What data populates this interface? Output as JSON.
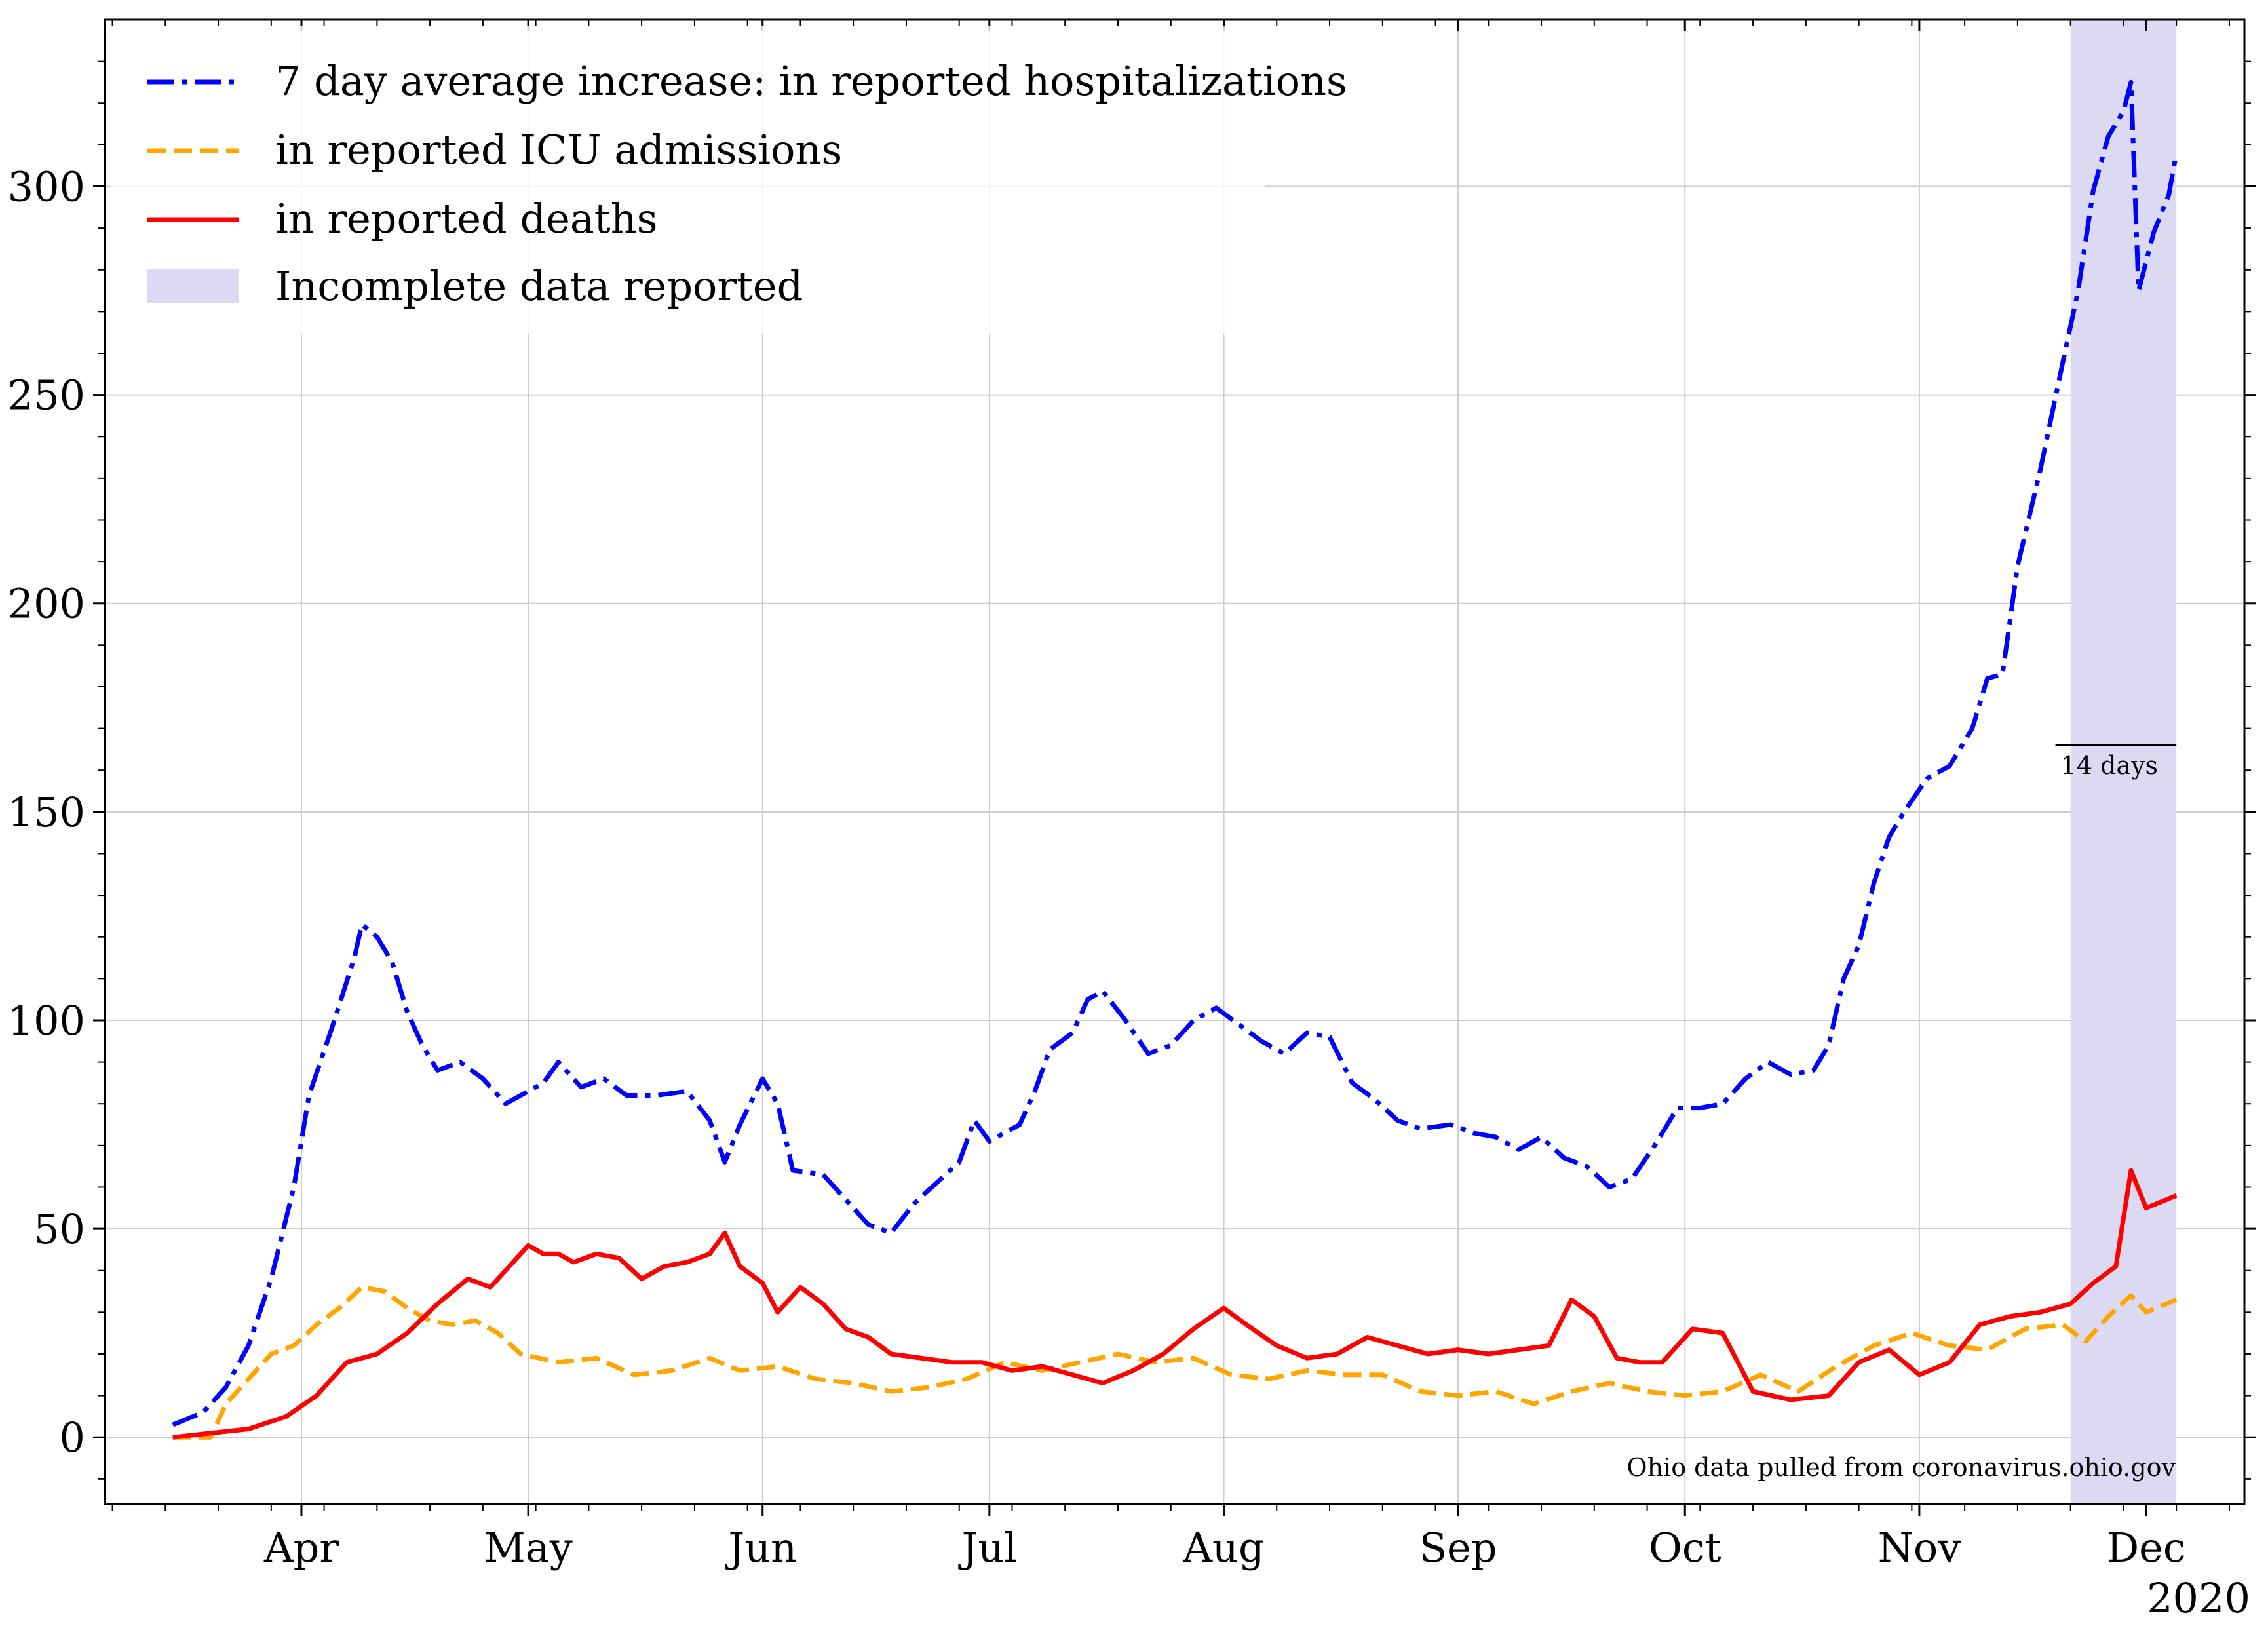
{
  "chart_data": {
    "type": "line",
    "title": "",
    "xlabel": "",
    "ylabel": "",
    "x_start_date": "2020-03-15",
    "x_range": [
      "2020-03-06",
      "2020-12-14"
    ],
    "ylim": [
      -16,
      340
    ],
    "grid": true,
    "legend_placement": "top-left",
    "x_tick_labels": [
      "Apr",
      "May",
      "Jun",
      "Jul",
      "Aug",
      "Sep",
      "Oct",
      "Nov",
      "Dec"
    ],
    "x_tick_dates": [
      "2020-04-01",
      "2020-05-01",
      "2020-06-01",
      "2020-07-01",
      "2020-08-01",
      "2020-09-01",
      "2020-10-01",
      "2020-11-01",
      "2020-12-01"
    ],
    "x_year_label": "2020",
    "y_ticks": [
      0,
      50,
      100,
      150,
      200,
      250,
      300
    ],
    "y_tick_labels": [
      "0",
      "50",
      "100",
      "150",
      "200",
      "250",
      "300"
    ],
    "series": [
      {
        "name": "7 day average increase: in reported hospitalizations",
        "color": "#0000ff",
        "style": "dashdot",
        "points": [
          [
            "2020-03-15",
            3
          ],
          [
            "2020-03-19",
            6
          ],
          [
            "2020-03-22",
            12
          ],
          [
            "2020-03-25",
            22
          ],
          [
            "2020-03-28",
            38
          ],
          [
            "2020-03-31",
            60
          ],
          [
            "2020-04-02",
            82
          ],
          [
            "2020-04-05",
            98
          ],
          [
            "2020-04-08",
            115
          ],
          [
            "2020-04-09",
            123
          ],
          [
            "2020-04-11",
            120
          ],
          [
            "2020-04-13",
            114
          ],
          [
            "2020-04-15",
            102
          ],
          [
            "2020-04-17",
            94
          ],
          [
            "2020-04-19",
            88
          ],
          [
            "2020-04-22",
            90
          ],
          [
            "2020-04-25",
            86
          ],
          [
            "2020-04-28",
            80
          ],
          [
            "2020-05-01",
            83
          ],
          [
            "2020-05-03",
            85
          ],
          [
            "2020-05-05",
            90
          ],
          [
            "2020-05-08",
            84
          ],
          [
            "2020-05-11",
            86
          ],
          [
            "2020-05-14",
            82
          ],
          [
            "2020-05-18",
            82
          ],
          [
            "2020-05-22",
            83
          ],
          [
            "2020-05-25",
            76
          ],
          [
            "2020-05-27",
            66
          ],
          [
            "2020-05-29",
            75
          ],
          [
            "2020-06-01",
            86
          ],
          [
            "2020-06-03",
            80
          ],
          [
            "2020-06-05",
            64
          ],
          [
            "2020-06-09",
            63
          ],
          [
            "2020-06-12",
            57
          ],
          [
            "2020-06-15",
            51
          ],
          [
            "2020-06-18",
            49
          ],
          [
            "2020-06-21",
            56
          ],
          [
            "2020-06-24",
            61
          ],
          [
            "2020-06-27",
            66
          ],
          [
            "2020-06-29",
            76
          ],
          [
            "2020-07-01",
            71
          ],
          [
            "2020-07-05",
            75
          ],
          [
            "2020-07-07",
            83
          ],
          [
            "2020-07-09",
            93
          ],
          [
            "2020-07-12",
            97
          ],
          [
            "2020-07-14",
            105
          ],
          [
            "2020-07-16",
            107
          ],
          [
            "2020-07-19",
            100
          ],
          [
            "2020-07-22",
            92
          ],
          [
            "2020-07-25",
            94
          ],
          [
            "2020-07-28",
            100
          ],
          [
            "2020-07-31",
            103
          ],
          [
            "2020-08-03",
            99
          ],
          [
            "2020-08-06",
            95
          ],
          [
            "2020-08-09",
            92
          ],
          [
            "2020-08-12",
            97
          ],
          [
            "2020-08-15",
            96
          ],
          [
            "2020-08-18",
            85
          ],
          [
            "2020-08-21",
            81
          ],
          [
            "2020-08-24",
            76
          ],
          [
            "2020-08-27",
            74
          ],
          [
            "2020-08-31",
            75
          ],
          [
            "2020-09-03",
            73
          ],
          [
            "2020-09-06",
            72
          ],
          [
            "2020-09-09",
            69
          ],
          [
            "2020-09-12",
            72
          ],
          [
            "2020-09-15",
            67
          ],
          [
            "2020-09-18",
            65
          ],
          [
            "2020-09-21",
            60
          ],
          [
            "2020-09-24",
            62
          ],
          [
            "2020-09-27",
            70
          ],
          [
            "2020-09-30",
            79
          ],
          [
            "2020-10-03",
            79
          ],
          [
            "2020-10-06",
            80
          ],
          [
            "2020-10-09",
            86
          ],
          [
            "2020-10-12",
            90
          ],
          [
            "2020-10-15",
            87
          ],
          [
            "2020-10-18",
            88
          ],
          [
            "2020-10-20",
            94
          ],
          [
            "2020-10-22",
            110
          ],
          [
            "2020-10-24",
            118
          ],
          [
            "2020-10-26",
            133
          ],
          [
            "2020-10-28",
            144
          ],
          [
            "2020-10-30",
            150
          ],
          [
            "2020-11-02",
            158
          ],
          [
            "2020-11-05",
            161
          ],
          [
            "2020-11-08",
            170
          ],
          [
            "2020-11-10",
            182
          ],
          [
            "2020-11-12",
            183
          ],
          [
            "2020-11-14",
            209
          ],
          [
            "2020-11-17",
            232
          ],
          [
            "2020-11-20",
            258
          ],
          [
            "2020-11-22",
            275
          ],
          [
            "2020-11-24",
            299
          ],
          [
            "2020-11-26",
            312
          ],
          [
            "2020-11-28",
            318
          ],
          [
            "2020-11-29",
            325
          ],
          [
            "2020-11-30",
            275
          ],
          [
            "2020-12-02",
            289
          ],
          [
            "2020-12-04",
            298
          ],
          [
            "2020-12-05",
            308
          ]
        ]
      },
      {
        "name": "in reported ICU admissions",
        "color": "#ffa500",
        "style": "dashed",
        "points": [
          [
            "2020-03-15",
            0
          ],
          [
            "2020-03-20",
            0
          ],
          [
            "2020-03-22",
            8
          ],
          [
            "2020-03-25",
            14
          ],
          [
            "2020-03-28",
            20
          ],
          [
            "2020-03-31",
            22
          ],
          [
            "2020-04-03",
            27
          ],
          [
            "2020-04-06",
            31
          ],
          [
            "2020-04-09",
            36
          ],
          [
            "2020-04-12",
            35
          ],
          [
            "2020-04-15",
            31
          ],
          [
            "2020-04-18",
            28
          ],
          [
            "2020-04-21",
            27
          ],
          [
            "2020-04-24",
            28
          ],
          [
            "2020-04-27",
            25
          ],
          [
            "2020-04-30",
            20
          ],
          [
            "2020-05-05",
            18
          ],
          [
            "2020-05-10",
            19
          ],
          [
            "2020-05-15",
            15
          ],
          [
            "2020-05-20",
            16
          ],
          [
            "2020-05-25",
            19
          ],
          [
            "2020-05-29",
            16
          ],
          [
            "2020-06-03",
            17
          ],
          [
            "2020-06-08",
            14
          ],
          [
            "2020-06-13",
            13
          ],
          [
            "2020-06-18",
            11
          ],
          [
            "2020-06-23",
            12
          ],
          [
            "2020-06-28",
            14
          ],
          [
            "2020-07-03",
            18
          ],
          [
            "2020-07-08",
            16
          ],
          [
            "2020-07-13",
            18
          ],
          [
            "2020-07-18",
            20
          ],
          [
            "2020-07-23",
            18
          ],
          [
            "2020-07-28",
            19
          ],
          [
            "2020-08-02",
            15
          ],
          [
            "2020-08-07",
            14
          ],
          [
            "2020-08-12",
            16
          ],
          [
            "2020-08-17",
            15
          ],
          [
            "2020-08-22",
            15
          ],
          [
            "2020-08-27",
            11
          ],
          [
            "2020-09-01",
            10
          ],
          [
            "2020-09-06",
            11
          ],
          [
            "2020-09-11",
            8
          ],
          [
            "2020-09-16",
            11
          ],
          [
            "2020-09-21",
            13
          ],
          [
            "2020-09-26",
            11
          ],
          [
            "2020-10-01",
            10
          ],
          [
            "2020-10-06",
            11
          ],
          [
            "2020-10-11",
            15
          ],
          [
            "2020-10-16",
            11
          ],
          [
            "2020-10-21",
            17
          ],
          [
            "2020-10-26",
            22
          ],
          [
            "2020-10-31",
            25
          ],
          [
            "2020-11-05",
            22
          ],
          [
            "2020-11-10",
            21
          ],
          [
            "2020-11-15",
            26
          ],
          [
            "2020-11-20",
            27
          ],
          [
            "2020-11-23",
            23
          ],
          [
            "2020-11-26",
            29
          ],
          [
            "2020-11-29",
            34
          ],
          [
            "2020-12-01",
            30
          ],
          [
            "2020-12-05",
            33
          ]
        ]
      },
      {
        "name": "in reported deaths",
        "color": "#ff0000",
        "style": "solid",
        "points": [
          [
            "2020-03-15",
            0
          ],
          [
            "2020-03-20",
            1
          ],
          [
            "2020-03-25",
            2
          ],
          [
            "2020-03-30",
            5
          ],
          [
            "2020-04-03",
            10
          ],
          [
            "2020-04-07",
            18
          ],
          [
            "2020-04-11",
            20
          ],
          [
            "2020-04-15",
            25
          ],
          [
            "2020-04-19",
            32
          ],
          [
            "2020-04-21",
            35
          ],
          [
            "2020-04-23",
            38
          ],
          [
            "2020-04-26",
            36
          ],
          [
            "2020-04-28",
            40
          ],
          [
            "2020-05-01",
            46
          ],
          [
            "2020-05-03",
            44
          ],
          [
            "2020-05-05",
            44
          ],
          [
            "2020-05-07",
            42
          ],
          [
            "2020-05-10",
            44
          ],
          [
            "2020-05-13",
            43
          ],
          [
            "2020-05-16",
            38
          ],
          [
            "2020-05-19",
            41
          ],
          [
            "2020-05-22",
            42
          ],
          [
            "2020-05-25",
            44
          ],
          [
            "2020-05-27",
            49
          ],
          [
            "2020-05-29",
            41
          ],
          [
            "2020-06-01",
            37
          ],
          [
            "2020-06-03",
            30
          ],
          [
            "2020-06-06",
            36
          ],
          [
            "2020-06-09",
            32
          ],
          [
            "2020-06-12",
            26
          ],
          [
            "2020-06-15",
            24
          ],
          [
            "2020-06-18",
            20
          ],
          [
            "2020-06-22",
            19
          ],
          [
            "2020-06-26",
            18
          ],
          [
            "2020-06-30",
            18
          ],
          [
            "2020-07-04",
            16
          ],
          [
            "2020-07-08",
            17
          ],
          [
            "2020-07-12",
            15
          ],
          [
            "2020-07-16",
            13
          ],
          [
            "2020-07-20",
            16
          ],
          [
            "2020-07-24",
            20
          ],
          [
            "2020-07-28",
            26
          ],
          [
            "2020-08-01",
            31
          ],
          [
            "2020-08-04",
            27
          ],
          [
            "2020-08-08",
            22
          ],
          [
            "2020-08-12",
            19
          ],
          [
            "2020-08-16",
            20
          ],
          [
            "2020-08-20",
            24
          ],
          [
            "2020-08-24",
            22
          ],
          [
            "2020-08-28",
            20
          ],
          [
            "2020-09-01",
            21
          ],
          [
            "2020-09-05",
            20
          ],
          [
            "2020-09-09",
            21
          ],
          [
            "2020-09-13",
            22
          ],
          [
            "2020-09-16",
            33
          ],
          [
            "2020-09-19",
            29
          ],
          [
            "2020-09-22",
            19
          ],
          [
            "2020-09-25",
            18
          ],
          [
            "2020-09-28",
            18
          ],
          [
            "2020-10-02",
            26
          ],
          [
            "2020-10-06",
            25
          ],
          [
            "2020-10-10",
            11
          ],
          [
            "2020-10-15",
            9
          ],
          [
            "2020-10-20",
            10
          ],
          [
            "2020-10-24",
            18
          ],
          [
            "2020-10-28",
            21
          ],
          [
            "2020-11-01",
            15
          ],
          [
            "2020-11-05",
            18
          ],
          [
            "2020-11-09",
            27
          ],
          [
            "2020-11-13",
            29
          ],
          [
            "2020-11-17",
            30
          ],
          [
            "2020-11-21",
            32
          ],
          [
            "2020-11-24",
            37
          ],
          [
            "2020-11-27",
            41
          ],
          [
            "2020-11-29",
            64
          ],
          [
            "2020-12-01",
            55
          ],
          [
            "2020-12-05",
            58
          ]
        ]
      }
    ],
    "shaded_span": {
      "label": "Incomplete data reported",
      "color": "#dcdaf3",
      "from": "2020-11-21",
      "to": "2020-12-05"
    },
    "annotations": {
      "scale_bar_label": "14 days",
      "scale_bar_days": 14,
      "scale_bar_y": 166,
      "source_note": "Ohio data pulled from coronavirus.ohio.gov"
    }
  }
}
